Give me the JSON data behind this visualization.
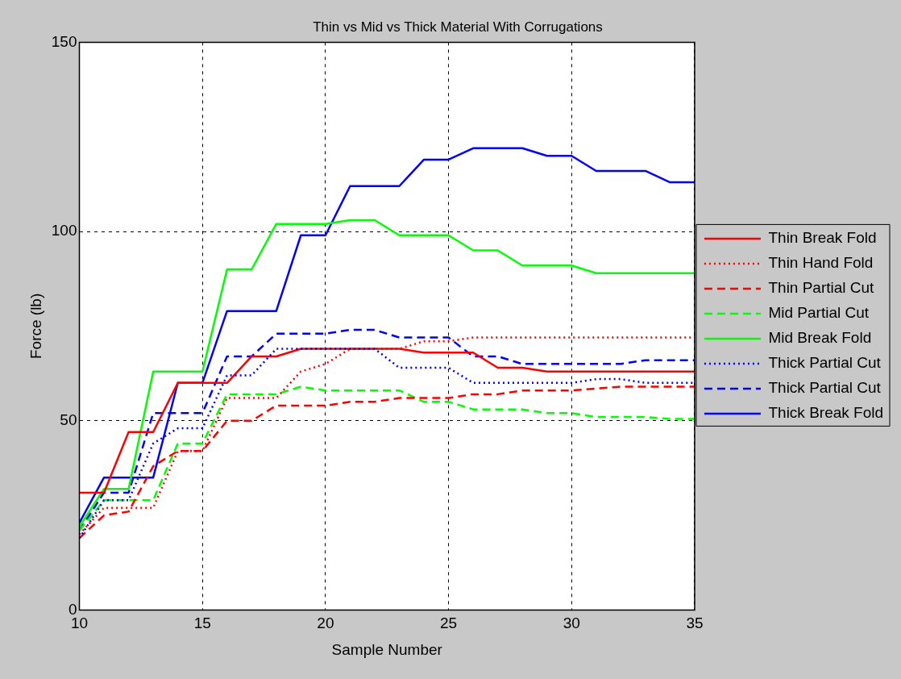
{
  "chart_data": {
    "type": "line",
    "title": "Thin vs Mid vs Thick Material With Corrugations",
    "xlabel": "Sample Number",
    "ylabel": "Force (lb)",
    "x": [
      10,
      11,
      12,
      13,
      14,
      15,
      16,
      17,
      18,
      19,
      20,
      21,
      22,
      23,
      24,
      25,
      26,
      27,
      28,
      29,
      30,
      31,
      32,
      33,
      34,
      35
    ],
    "xlim": [
      10,
      35
    ],
    "xticks": [
      10,
      15,
      20,
      25,
      30,
      35
    ],
    "ylim": [
      0,
      150
    ],
    "yticks": [
      0,
      50,
      100,
      150
    ],
    "grid": true,
    "legend": "right",
    "series": [
      {
        "name": "Thin Break Fold",
        "color": "#ff0000",
        "line_style": "solid",
        "values": [
          31,
          31,
          47,
          47,
          60,
          60,
          60,
          67,
          67,
          69,
          69,
          69,
          69,
          69,
          68,
          68,
          68,
          64,
          64,
          63,
          63,
          63,
          63,
          63,
          63,
          63
        ]
      },
      {
        "name": "Thin Hand Fold",
        "color": "#ff0000",
        "line_style": "dotted",
        "values": [
          20,
          27,
          27,
          27,
          42,
          42,
          56,
          56,
          56,
          63,
          65,
          69,
          69,
          69,
          71,
          71,
          72,
          72,
          72,
          72,
          72,
          72,
          72,
          72,
          72,
          72
        ]
      },
      {
        "name": "Thin Partial Cut",
        "color": "#ff0000",
        "line_style": "dashed",
        "values": [
          19,
          25,
          26,
          38,
          42,
          42,
          50,
          50,
          54,
          54,
          54,
          55,
          55,
          56,
          56,
          56,
          57,
          57,
          58,
          58,
          58,
          58.5,
          59,
          59,
          59,
          59
        ]
      },
      {
        "name": "Mid Partial Cut",
        "color": "#00ff00",
        "line_style": "dashed",
        "values": [
          21,
          29,
          29,
          29,
          44,
          44,
          57,
          57,
          57,
          59,
          58,
          58,
          58,
          58,
          55,
          55,
          53,
          53,
          53,
          52,
          52,
          51,
          51,
          51,
          50.5,
          50.5
        ]
      },
      {
        "name": "Mid Break Fold",
        "color": "#00ff00",
        "line_style": "solid",
        "values": [
          22,
          32,
          32,
          63,
          63,
          63,
          90,
          90,
          102,
          102,
          102,
          103,
          103,
          99,
          99,
          99,
          95,
          95,
          91,
          91,
          91,
          89,
          89,
          89,
          89,
          89
        ]
      },
      {
        "name": "Thick Partial Cut",
        "color": "#0000ff",
        "line_style": "dotted",
        "values": [
          19,
          29,
          29,
          44,
          48,
          48,
          62,
          62,
          69,
          69,
          69,
          69,
          69,
          64,
          64,
          64,
          60,
          60,
          60,
          60,
          60,
          61,
          61,
          60,
          60,
          60
        ]
      },
      {
        "name": "Thick Partial Cut",
        "color": "#0000ff",
        "line_style": "dashed",
        "values": [
          21,
          31,
          31,
          52,
          52,
          52,
          67,
          67,
          73,
          73,
          73,
          74,
          74,
          72,
          72,
          72,
          67,
          67,
          65,
          65,
          65,
          65,
          65,
          66,
          66,
          66
        ]
      },
      {
        "name": "Thick Break Fold",
        "color": "#0000ff",
        "line_style": "solid",
        "values": [
          23,
          35,
          35,
          35,
          60,
          60,
          79,
          79,
          79,
          99,
          99,
          112,
          112,
          112,
          119,
          119,
          122,
          122,
          122,
          120,
          120,
          116,
          116,
          116,
          113,
          113
        ]
      }
    ]
  }
}
